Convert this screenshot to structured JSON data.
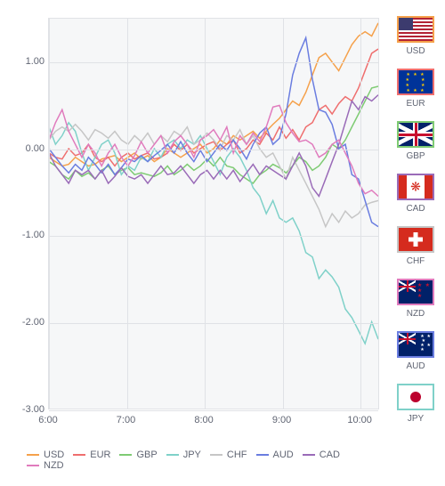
{
  "chart": {
    "type": "line",
    "background_color": "#f6f7f8",
    "grid_color": "#e0e2e6",
    "border_color": "#e0e2e6",
    "y": {
      "min": -3.0,
      "max": 1.5,
      "ticks": [
        1.0,
        0.0,
        -1.0,
        -2.0,
        -3.0
      ]
    },
    "x": {
      "min": 6.0,
      "max": 10.25,
      "ticks": [
        6,
        7,
        8,
        9,
        10
      ],
      "tick_labels": [
        "6:00",
        "7:00",
        "8:00",
        "9:00",
        "10:00"
      ]
    },
    "label_fontsize": 11,
    "label_color": "#606573",
    "line_width": 1.5,
    "series_order": [
      "USD",
      "EUR",
      "GBP",
      "JPY",
      "CHF",
      "AUD",
      "CAD",
      "NZD"
    ],
    "series": {
      "USD": {
        "color": "#f5a14b",
        "values": [
          -0.1,
          -0.15,
          -0.2,
          -0.18,
          -0.1,
          -0.15,
          -0.2,
          -0.18,
          -0.12,
          -0.1,
          -0.08,
          -0.15,
          -0.1,
          -0.05,
          -0.12,
          -0.08,
          -0.15,
          -0.1,
          0.0,
          -0.05,
          -0.1,
          -0.05,
          0.0,
          0.05,
          -0.05,
          0.0,
          0.1,
          0.05,
          0.15,
          0.1,
          0.15,
          0.2,
          0.12,
          0.2,
          0.28,
          0.35,
          0.45,
          0.55,
          0.5,
          0.65,
          0.85,
          1.05,
          1.1,
          1.0,
          0.9,
          1.05,
          1.2,
          1.3,
          1.35,
          1.3,
          1.45
        ]
      },
      "EUR": {
        "color": "#ef6e6e",
        "values": [
          -0.05,
          -0.1,
          -0.12,
          0.0,
          -0.08,
          -0.05,
          0.05,
          -0.1,
          -0.15,
          -0.1,
          -0.2,
          -0.1,
          -0.05,
          -0.12,
          -0.08,
          -0.05,
          -0.12,
          -0.1,
          -0.05,
          0.05,
          -0.02,
          0.05,
          -0.05,
          0.0,
          0.05,
          0.08,
          -0.02,
          0.05,
          0.1,
          -0.05,
          0.0,
          0.1,
          0.05,
          0.18,
          0.1,
          0.25,
          0.12,
          0.22,
          0.1,
          0.25,
          0.3,
          0.45,
          0.5,
          0.4,
          0.52,
          0.6,
          0.55,
          0.7,
          0.9,
          1.1,
          1.15
        ]
      },
      "GBP": {
        "color": "#7ecb73",
        "values": [
          -0.15,
          -0.2,
          -0.3,
          -0.35,
          -0.25,
          -0.32,
          -0.28,
          -0.35,
          -0.25,
          -0.2,
          -0.3,
          -0.25,
          -0.22,
          -0.3,
          -0.28,
          -0.3,
          -0.32,
          -0.28,
          -0.2,
          -0.3,
          -0.25,
          -0.18,
          -0.25,
          -0.2,
          -0.12,
          -0.2,
          -0.1,
          -0.2,
          -0.22,
          -0.3,
          -0.35,
          -0.4,
          -0.3,
          -0.25,
          -0.18,
          -0.22,
          -0.28,
          -0.2,
          -0.1,
          -0.15,
          -0.25,
          -0.2,
          -0.1,
          0.05,
          0.0,
          0.1,
          0.25,
          0.4,
          0.55,
          0.7,
          0.72
        ]
      },
      "JPY": {
        "color": "#7fd1c9",
        "values": [
          0.25,
          0.05,
          0.15,
          0.3,
          0.2,
          -0.05,
          -0.25,
          -0.1,
          0.05,
          0.1,
          -0.05,
          -0.3,
          -0.2,
          -0.25,
          -0.1,
          -0.15,
          0.0,
          -0.1,
          0.05,
          0.1,
          0.0,
          0.1,
          0.05,
          0.15,
          0.0,
          -0.15,
          -0.3,
          -0.1,
          0.0,
          -0.1,
          -0.25,
          -0.45,
          -0.55,
          -0.75,
          -0.6,
          -0.8,
          -0.85,
          -0.8,
          -0.95,
          -1.2,
          -1.25,
          -1.5,
          -1.4,
          -1.48,
          -1.6,
          -1.85,
          -1.95,
          -2.1,
          -2.25,
          -2.0,
          -2.2
        ]
      },
      "CHF": {
        "color": "#c6c6c6",
        "values": [
          0.1,
          0.2,
          0.25,
          0.2,
          0.28,
          0.2,
          0.1,
          0.22,
          0.18,
          0.12,
          0.2,
          0.1,
          0.05,
          0.15,
          0.08,
          0.18,
          0.05,
          0.15,
          0.08,
          0.2,
          0.15,
          0.25,
          0.05,
          0.1,
          0.18,
          0.1,
          0.0,
          0.15,
          0.1,
          0.22,
          0.05,
          0.15,
          0.0,
          -0.1,
          -0.05,
          -0.2,
          -0.35,
          -0.1,
          -0.25,
          -0.4,
          -0.55,
          -0.7,
          -0.9,
          -0.75,
          -0.85,
          -0.72,
          -0.8,
          -0.75,
          -0.65,
          -0.62,
          -0.6
        ]
      },
      "AUD": {
        "color": "#6a7de0",
        "values": [
          0.0,
          -0.1,
          -0.2,
          -0.28,
          -0.18,
          -0.25,
          -0.1,
          -0.18,
          -0.28,
          -0.18,
          -0.3,
          -0.22,
          -0.12,
          -0.15,
          -0.08,
          -0.15,
          -0.08,
          -0.02,
          0.05,
          -0.05,
          0.08,
          -0.05,
          -0.15,
          -0.02,
          -0.15,
          -0.05,
          0.05,
          -0.02,
          0.1,
          0.0,
          -0.12,
          0.05,
          0.18,
          0.25,
          0.05,
          0.12,
          0.4,
          0.85,
          1.1,
          1.28,
          0.8,
          0.45,
          0.42,
          0.28,
          0.0,
          0.05,
          -0.3,
          -0.35,
          -0.6,
          -0.85,
          -0.9
        ]
      },
      "CAD": {
        "color": "#9a6bb8",
        "values": [
          -0.05,
          -0.2,
          -0.3,
          -0.4,
          -0.25,
          -0.3,
          -0.25,
          -0.35,
          -0.25,
          -0.4,
          -0.32,
          -0.22,
          -0.32,
          -0.35,
          -0.3,
          -0.4,
          -0.3,
          -0.2,
          -0.3,
          -0.28,
          -0.2,
          -0.3,
          -0.4,
          -0.3,
          -0.25,
          -0.35,
          -0.25,
          -0.35,
          -0.25,
          -0.38,
          -0.28,
          -0.18,
          -0.3,
          -0.2,
          -0.25,
          -0.3,
          -0.35,
          -0.2,
          -0.05,
          -0.2,
          -0.45,
          -0.55,
          -0.35,
          -0.15,
          0.05,
          0.3,
          0.55,
          0.45,
          0.6,
          0.55,
          0.62
        ]
      },
      "NZD": {
        "color": "#e07bbd",
        "values": [
          0.1,
          0.3,
          0.45,
          0.2,
          0.05,
          -0.1,
          0.05,
          -0.05,
          -0.2,
          -0.05,
          0.05,
          -0.1,
          -0.2,
          -0.08,
          0.08,
          -0.05,
          0.05,
          0.15,
          -0.05,
          0.08,
          0.15,
          0.05,
          -0.1,
          0.1,
          0.15,
          0.22,
          0.1,
          0.25,
          -0.05,
          0.15,
          0.05,
          0.18,
          0.08,
          0.25,
          0.48,
          0.5,
          0.3,
          0.18,
          0.08,
          0.1,
          0.05,
          -0.1,
          -0.05,
          0.05,
          0.1,
          -0.05,
          -0.2,
          -0.4,
          -0.52,
          -0.48,
          -0.55
        ]
      }
    }
  },
  "legend_items": [
    {
      "code": "USD",
      "color": "#f5a14b"
    },
    {
      "code": "EUR",
      "color": "#ef6e6e"
    },
    {
      "code": "GBP",
      "color": "#7ecb73"
    },
    {
      "code": "JPY",
      "color": "#7fd1c9"
    },
    {
      "code": "CHF",
      "color": "#c6c6c6"
    },
    {
      "code": "AUD",
      "color": "#6a7de0"
    },
    {
      "code": "CAD",
      "color": "#9a6bb8"
    },
    {
      "code": "NZD",
      "color": "#e07bbd"
    }
  ],
  "flags": [
    {
      "code": "USD",
      "border": "#f5a14b",
      "cls": "flag-us"
    },
    {
      "code": "EUR",
      "border": "#ef6e6e",
      "cls": "flag-eu"
    },
    {
      "code": "GBP",
      "border": "#7ecb73",
      "cls": "flag-gb"
    },
    {
      "code": "CAD",
      "border": "#9a6bb8",
      "cls": "flag-ca"
    },
    {
      "code": "CHF",
      "border": "#c6c6c6",
      "cls": "flag-ch"
    },
    {
      "code": "NZD",
      "border": "#e07bbd",
      "cls": "flag-nz"
    },
    {
      "code": "AUD",
      "border": "#6a7de0",
      "cls": "flag-au"
    },
    {
      "code": "JPY",
      "border": "#7fd1c9",
      "cls": "flag-jp"
    }
  ]
}
